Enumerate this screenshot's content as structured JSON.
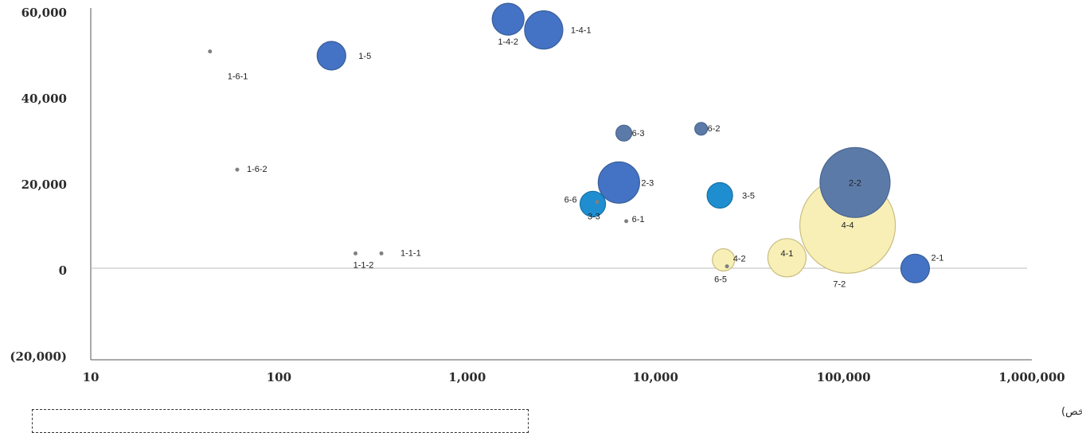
{
  "chart_data": {
    "type": "scatter",
    "x_scale": "log",
    "xlim": [
      10,
      1000000
    ],
    "ylim": [
      -20000,
      60000
    ],
    "xticks": [
      {
        "value": 10,
        "label": "10"
      },
      {
        "value": 100,
        "label": "100"
      },
      {
        "value": 1000,
        "label": "1,000"
      },
      {
        "value": 10000,
        "label": "10,000"
      },
      {
        "value": 100000,
        "label": "100,000"
      },
      {
        "value": 1000000,
        "label": "1,000,000"
      }
    ],
    "yticks": [
      {
        "value": 60000,
        "label": "60,000"
      },
      {
        "value": 40000,
        "label": "40,000"
      },
      {
        "value": 20000,
        "label": "20,000"
      },
      {
        "value": 0,
        "label": "0"
      },
      {
        "value": -20000,
        "label": "(20,000)"
      }
    ],
    "xlabel": "السكان المتضررون (شخص)",
    "colors": {
      "blue": "#4472c4",
      "steel": "#5b7aa8",
      "cyan": "#1e8ed0",
      "cream": "#f7efb5",
      "dot": "#808080"
    },
    "points": [
      {
        "label": "1-6-1",
        "x": 43,
        "y": 51000,
        "size": 1,
        "color": "dot"
      },
      {
        "label": "1-5",
        "x": 190,
        "y": 50000,
        "size": 9,
        "color": "blue"
      },
      {
        "label": "1-4-2",
        "x": 1650,
        "y": 58500,
        "size": 10,
        "color": "blue"
      },
      {
        "label": "1-4-1",
        "x": 2550,
        "y": 56000,
        "size": 12,
        "color": "blue"
      },
      {
        "label": "1-6-2",
        "x": 60,
        "y": 23500,
        "size": 1,
        "color": "dot"
      },
      {
        "label": "6-3",
        "x": 6800,
        "y": 32000,
        "size": 5,
        "color": "steel"
      },
      {
        "label": "6-2",
        "x": 17500,
        "y": 33000,
        "size": 4,
        "color": "steel"
      },
      {
        "label": "2-3",
        "x": 6400,
        "y": 20500,
        "size": 13,
        "color": "blue"
      },
      {
        "label": "6-6",
        "x": 4650,
        "y": 15500,
        "size": 8,
        "color": "cyan"
      },
      {
        "label": "3-3",
        "x": 4900,
        "y": 16000,
        "size": 1,
        "color": "dot"
      },
      {
        "label": "6-1",
        "x": 7000,
        "y": 11500,
        "size": 1,
        "color": "dot"
      },
      {
        "label": "3-5",
        "x": 22000,
        "y": 17500,
        "size": 8,
        "color": "cyan"
      },
      {
        "label": "2-2",
        "x": 115000,
        "y": 20500,
        "size": 22,
        "color": "steel"
      },
      {
        "label": "4-4",
        "x": 105000,
        "y": 10500,
        "size": 30,
        "color": "cream"
      },
      {
        "label": "1-1-2",
        "x": 255,
        "y": 4000,
        "size": 1,
        "color": "dot"
      },
      {
        "label": "1-1-1",
        "x": 350,
        "y": 4000,
        "size": 1,
        "color": "dot"
      },
      {
        "label": "4-2",
        "x": 23000,
        "y": 2500,
        "size": 7,
        "color": "cream"
      },
      {
        "label": "6-5",
        "x": 24000,
        "y": 1000,
        "size": 1,
        "color": "dot"
      },
      {
        "label": "4-1",
        "x": 50000,
        "y": 3000,
        "size": 12,
        "color": "cream"
      },
      {
        "label": "2-1",
        "x": 240000,
        "y": 500,
        "size": 9,
        "color": "blue"
      },
      {
        "label": "7-2",
        "x": 95000,
        "y": -1000,
        "size": 0,
        "color": "none"
      }
    ]
  }
}
